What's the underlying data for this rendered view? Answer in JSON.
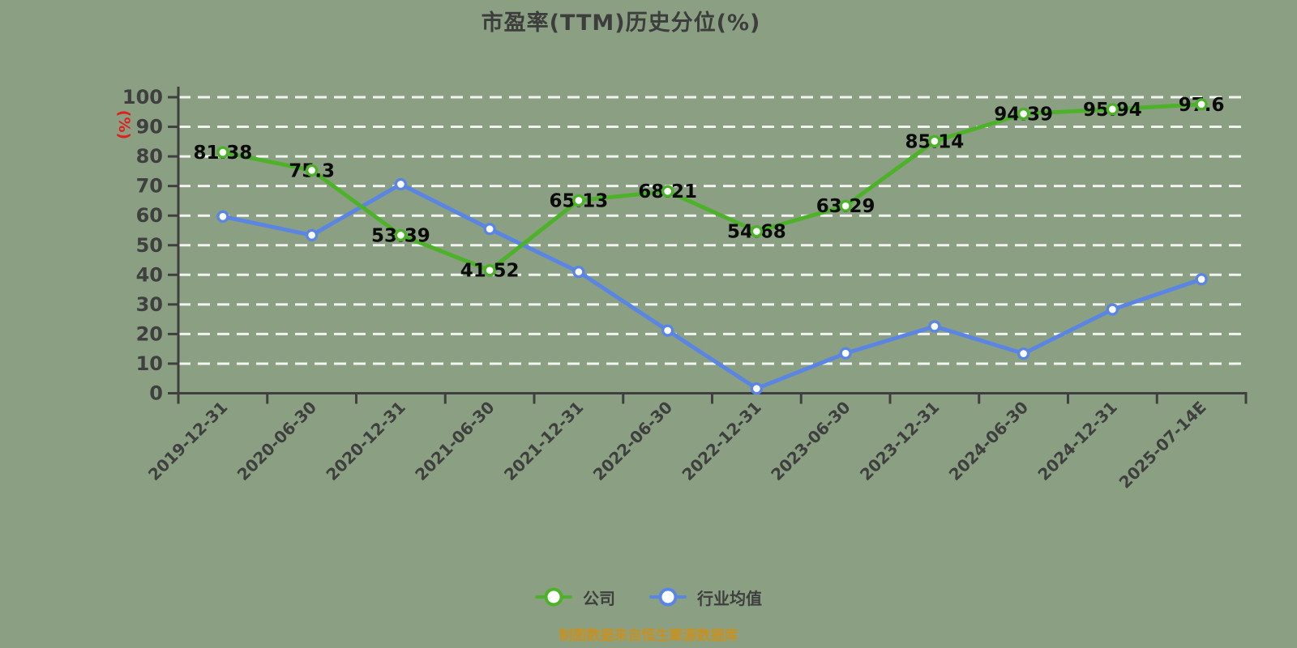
{
  "title": "市盈率(TTM)历史分位(%)",
  "source_note": "制图数据来自恒生聚源数据库",
  "y_axis": {
    "unit_label": "(%)",
    "min": 0,
    "max": 100,
    "step": 10
  },
  "legend": [
    {
      "label": "公司",
      "color": "#4DB229"
    },
    {
      "label": "行业均值",
      "color": "#5B85E3"
    }
  ],
  "colors": {
    "background": "#8BA083",
    "company_green": "#4DB229",
    "industry_blue": "#5B85E3",
    "axis_and_text": "#3F3F3F",
    "value_label": "#0A0A0A",
    "unit_label_red": "#E02020",
    "source_note_orange": "#C8911F",
    "gridline": "rgba(255,255,255,0.88)",
    "marker_fill": "#FFFFFF"
  },
  "chart_data": {
    "type": "line",
    "title": "市盈率(TTM)历史分位(%)",
    "xlabel": "",
    "ylabel": "(%)",
    "ylim": [
      0,
      100
    ],
    "ytick_step": 10,
    "grid": "horizontal-dashed-white",
    "legend_position": "bottom",
    "categories": [
      "2019-12-31",
      "2020-06-30",
      "2020-12-31",
      "2021-06-30",
      "2021-12-31",
      "2022-06-30",
      "2022-12-31",
      "2023-06-30",
      "2023-12-31",
      "2024-06-30",
      "2024-12-31",
      "2025-07-14E"
    ],
    "series": [
      {
        "key": "industry-average",
        "name": "行业均值",
        "color": "#5B85E3",
        "values": [
          59.7,
          53.4,
          70.6,
          55.5,
          41.0,
          21.2,
          1.6,
          13.5,
          22.6,
          13.4,
          28.3,
          38.5
        ],
        "point_labels": []
      },
      {
        "key": "company",
        "name": "公司",
        "color": "#4DB229",
        "values": [
          81.38,
          75.3,
          53.39,
          41.52,
          65.13,
          68.21,
          54.68,
          63.29,
          85.14,
          94.39,
          95.94,
          97.6
        ],
        "point_labels": [
          "81.38",
          "75.3",
          "53.39",
          "41.52",
          "65.13",
          "68.21",
          "54.68",
          "63.29",
          "85.14",
          "94.39",
          "95.94",
          "97.6"
        ]
      }
    ]
  }
}
